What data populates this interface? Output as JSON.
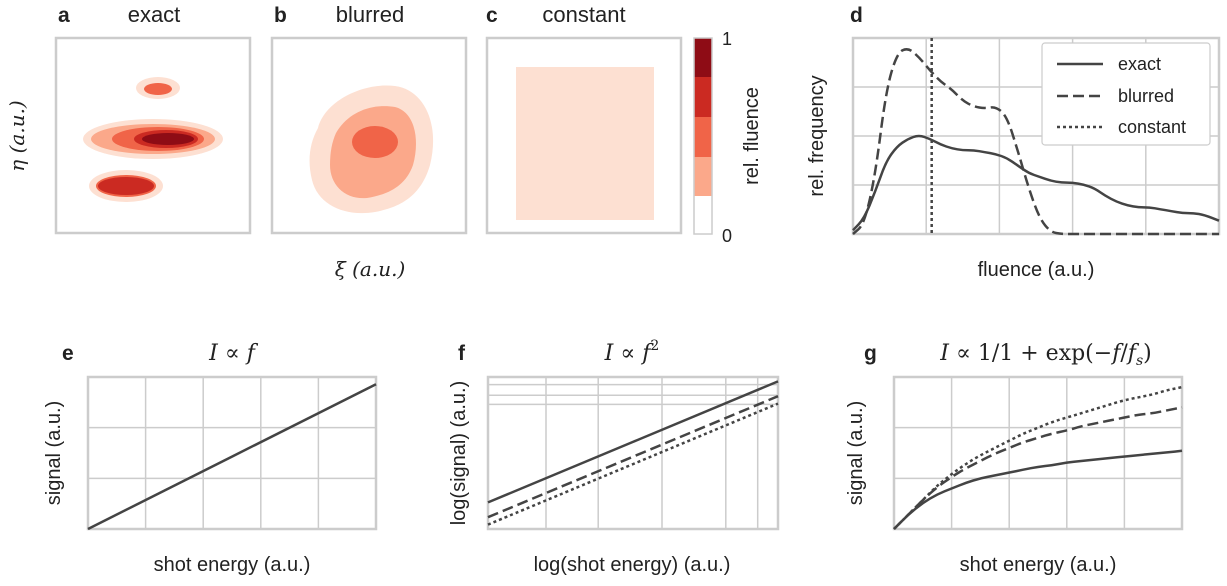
{
  "figure": {
    "panels_top": [
      {
        "letter": "a",
        "title": "exact"
      },
      {
        "letter": "b",
        "title": "blurred"
      },
      {
        "letter": "c",
        "title": "constant"
      },
      {
        "letter": "d",
        "title": ""
      }
    ],
    "contour_xlabel": "ξ (a.u.)",
    "contour_ylabel": "η (a.u.)",
    "colorbar": {
      "label": "rel. fluence",
      "tick_max": "1",
      "tick_min": "0",
      "levels": [
        "#fde0d2",
        "#fba88a",
        "#f06448",
        "#cb2a22",
        "#8e0c15"
      ]
    },
    "hist_xlabel": "fluence (a.u.)",
    "hist_ylabel": "rel. frequency",
    "legend": [
      "exact",
      "blurred",
      "constant"
    ],
    "panels_bottom": [
      {
        "letter": "e",
        "title_parts": [
          "I",
          " ∝ ",
          "f",
          ""
        ],
        "xlabel": "shot energy (a.u.)",
        "ylabel": "signal (a.u.)"
      },
      {
        "letter": "f",
        "title_parts": [
          "I",
          " ∝ ",
          "f",
          "2"
        ],
        "xlabel": "log(shot energy) (a.u.)",
        "ylabel": "log(signal) (a.u.)"
      },
      {
        "letter": "g",
        "title_parts": [
          "I",
          " ∝ 1/1 + exp(−",
          "f",
          "/",
          "f",
          "s",
          ")"
        ],
        "xlabel": "shot energy (a.u.)",
        "ylabel": "signal (a.u.)"
      }
    ]
  },
  "chart_data": [
    {
      "panel": "d",
      "type": "line",
      "xlabel": "fluence (a.u.)",
      "ylabel": "rel. frequency",
      "grid": true,
      "legend_position": "top-right",
      "x": [
        0.0,
        0.03,
        0.06,
        0.09,
        0.12,
        0.15,
        0.18,
        0.21,
        0.24,
        0.27,
        0.3,
        0.33,
        0.36,
        0.39,
        0.42,
        0.45,
        0.48,
        0.51,
        0.54,
        0.57,
        0.6,
        0.63,
        0.66,
        0.69,
        0.72,
        0.75,
        0.78,
        0.81,
        0.84,
        0.87,
        0.9,
        0.93,
        0.96,
        1.0
      ],
      "series": [
        {
          "name": "exact",
          "style": "solid",
          "values": [
            0.02,
            0.08,
            0.22,
            0.38,
            0.46,
            0.5,
            0.52,
            0.5,
            0.47,
            0.45,
            0.44,
            0.44,
            0.43,
            0.42,
            0.4,
            0.36,
            0.32,
            0.3,
            0.28,
            0.27,
            0.27,
            0.26,
            0.24,
            0.2,
            0.17,
            0.15,
            0.14,
            0.14,
            0.13,
            0.12,
            0.11,
            0.11,
            0.1,
            0.07
          ]
        },
        {
          "name": "blurred",
          "style": "dashed",
          "values": [
            0.0,
            0.05,
            0.3,
            0.75,
            0.95,
            0.98,
            0.93,
            0.86,
            0.8,
            0.76,
            0.7,
            0.67,
            0.66,
            0.67,
            0.62,
            0.44,
            0.24,
            0.08,
            0.01,
            0.0,
            0.0,
            0.0,
            0.0,
            0.0,
            0.0,
            0.0,
            0.0,
            0.0,
            0.0,
            0.0,
            0.0,
            0.0,
            0.0,
            0.0
          ]
        }
      ],
      "vlines": [
        {
          "name": "constant",
          "style": "dotted",
          "x": 0.215
        }
      ],
      "xlim": [
        0,
        1
      ],
      "ylim": [
        0,
        1.03
      ]
    },
    {
      "panel": "e",
      "type": "line",
      "xlabel": "shot energy (a.u.)",
      "ylabel": "signal (a.u.)",
      "grid": true,
      "x": [
        0,
        1
      ],
      "series": [
        {
          "name": "exact",
          "style": "solid",
          "values": [
            0,
            1
          ]
        }
      ],
      "xlim": [
        0,
        1
      ],
      "ylim": [
        0,
        1.05
      ]
    },
    {
      "panel": "f",
      "type": "line",
      "xlabel": "log(shot energy) (a.u.)",
      "ylabel": "log(signal) (a.u.)",
      "grid": true,
      "x": [
        0,
        1
      ],
      "series": [
        {
          "name": "exact",
          "style": "solid",
          "values": [
            0.18,
            1.0
          ]
        },
        {
          "name": "blurred",
          "style": "dashed",
          "values": [
            0.08,
            0.9
          ]
        },
        {
          "name": "constant",
          "style": "dotted",
          "values": [
            0.03,
            0.85
          ]
        }
      ],
      "xlim": [
        0,
        1
      ],
      "ylim": [
        0,
        1.03
      ]
    },
    {
      "panel": "g",
      "type": "line",
      "xlabel": "shot energy (a.u.)",
      "ylabel": "signal (a.u.)",
      "grid": true,
      "x": [
        0.0,
        0.05,
        0.1,
        0.15,
        0.2,
        0.25,
        0.3,
        0.35,
        0.4,
        0.45,
        0.5,
        0.55,
        0.6,
        0.65,
        0.7,
        0.75,
        0.8,
        0.85,
        0.9,
        0.95,
        1.0
      ],
      "series": [
        {
          "name": "exact",
          "style": "solid",
          "values": [
            0.0,
            0.1,
            0.18,
            0.24,
            0.28,
            0.32,
            0.35,
            0.37,
            0.39,
            0.41,
            0.43,
            0.44,
            0.46,
            0.47,
            0.48,
            0.49,
            0.5,
            0.51,
            0.52,
            0.53,
            0.54
          ]
        },
        {
          "name": "blurred",
          "style": "dashed",
          "values": [
            0.0,
            0.1,
            0.2,
            0.29,
            0.36,
            0.42,
            0.47,
            0.52,
            0.56,
            0.6,
            0.63,
            0.66,
            0.68,
            0.71,
            0.73,
            0.75,
            0.77,
            0.79,
            0.8,
            0.82,
            0.84
          ]
        },
        {
          "name": "constant",
          "style": "dotted",
          "values": [
            0.0,
            0.1,
            0.2,
            0.3,
            0.38,
            0.45,
            0.51,
            0.56,
            0.61,
            0.66,
            0.7,
            0.74,
            0.77,
            0.8,
            0.83,
            0.86,
            0.89,
            0.91,
            0.93,
            0.96,
            0.98
          ]
        }
      ],
      "xlim": [
        0,
        1
      ],
      "ylim": [
        0,
        1.05
      ]
    }
  ]
}
